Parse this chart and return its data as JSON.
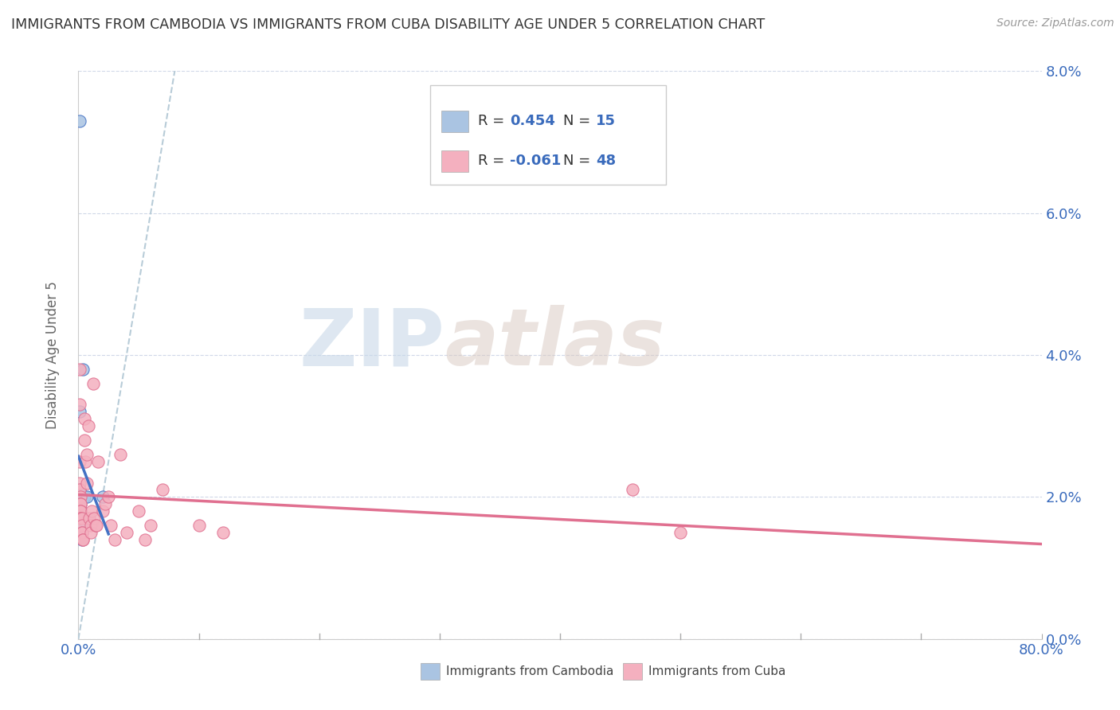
{
  "title": "IMMIGRANTS FROM CAMBODIA VS IMMIGRANTS FROM CUBA DISABILITY AGE UNDER 5 CORRELATION CHART",
  "source": "Source: ZipAtlas.com",
  "ylabel": "Disability Age Under 5",
  "xmin": 0.0,
  "xmax": 0.8,
  "ymin": 0.0,
  "ymax": 0.08,
  "ytick_labels": [
    "0.0%",
    "2.0%",
    "4.0%",
    "6.0%",
    "8.0%"
  ],
  "ytick_vals": [
    0.0,
    0.02,
    0.04,
    0.06,
    0.08
  ],
  "xtick_labels": [
    "0.0%",
    "80.0%"
  ],
  "xtick_vals": [
    0.0,
    0.8
  ],
  "r_cambodia": 0.454,
  "n_cambodia": 15,
  "r_cuba": -0.061,
  "n_cuba": 48,
  "color_cambodia": "#aac4e2",
  "color_cuba": "#f4b0bf",
  "line_color_cambodia": "#4472c4",
  "line_color_cuba": "#e07090",
  "trendline_dash_color": "#b8ccd8",
  "watermark_zip": "ZIP",
  "watermark_atlas": "atlas",
  "cambodia_points": [
    [
      0.001,
      0.073
    ],
    [
      0.001,
      0.032
    ],
    [
      0.001,
      0.021
    ],
    [
      0.001,
      0.02
    ],
    [
      0.001,
      0.019
    ],
    [
      0.002,
      0.019
    ],
    [
      0.002,
      0.018
    ],
    [
      0.002,
      0.017
    ],
    [
      0.002,
      0.016
    ],
    [
      0.003,
      0.015
    ],
    [
      0.003,
      0.014
    ],
    [
      0.004,
      0.038
    ],
    [
      0.005,
      0.02
    ],
    [
      0.007,
      0.02
    ],
    [
      0.02,
      0.02
    ]
  ],
  "cuba_points": [
    [
      0.001,
      0.038
    ],
    [
      0.001,
      0.033
    ],
    [
      0.001,
      0.025
    ],
    [
      0.001,
      0.022
    ],
    [
      0.001,
      0.021
    ],
    [
      0.002,
      0.02
    ],
    [
      0.002,
      0.019
    ],
    [
      0.002,
      0.019
    ],
    [
      0.002,
      0.018
    ],
    [
      0.002,
      0.018
    ],
    [
      0.002,
      0.017
    ],
    [
      0.002,
      0.017
    ],
    [
      0.003,
      0.017
    ],
    [
      0.003,
      0.016
    ],
    [
      0.003,
      0.015
    ],
    [
      0.003,
      0.015
    ],
    [
      0.004,
      0.014
    ],
    [
      0.004,
      0.014
    ],
    [
      0.005,
      0.031
    ],
    [
      0.005,
      0.028
    ],
    [
      0.006,
      0.025
    ],
    [
      0.007,
      0.026
    ],
    [
      0.007,
      0.022
    ],
    [
      0.008,
      0.03
    ],
    [
      0.009,
      0.017
    ],
    [
      0.01,
      0.016
    ],
    [
      0.01,
      0.015
    ],
    [
      0.011,
      0.018
    ],
    [
      0.012,
      0.036
    ],
    [
      0.013,
      0.017
    ],
    [
      0.014,
      0.016
    ],
    [
      0.015,
      0.016
    ],
    [
      0.016,
      0.025
    ],
    [
      0.02,
      0.018
    ],
    [
      0.022,
      0.019
    ],
    [
      0.025,
      0.02
    ],
    [
      0.027,
      0.016
    ],
    [
      0.03,
      0.014
    ],
    [
      0.035,
      0.026
    ],
    [
      0.04,
      0.015
    ],
    [
      0.05,
      0.018
    ],
    [
      0.055,
      0.014
    ],
    [
      0.06,
      0.016
    ],
    [
      0.07,
      0.021
    ],
    [
      0.1,
      0.016
    ],
    [
      0.12,
      0.015
    ],
    [
      0.46,
      0.021
    ],
    [
      0.5,
      0.015
    ]
  ],
  "legend_r_camb_text": "R = ",
  "legend_r_camb_val": "0.454",
  "legend_n_camb_text": "N = ",
  "legend_n_camb_val": "15",
  "legend_r_cuba_text": "R = ",
  "legend_r_cuba_val": "-0.061",
  "legend_n_cuba_text": "N = ",
  "legend_n_cuba_val": "48",
  "legend_label_camb": "Immigrants from Cambodia",
  "legend_label_cuba": "Immigrants from Cuba"
}
